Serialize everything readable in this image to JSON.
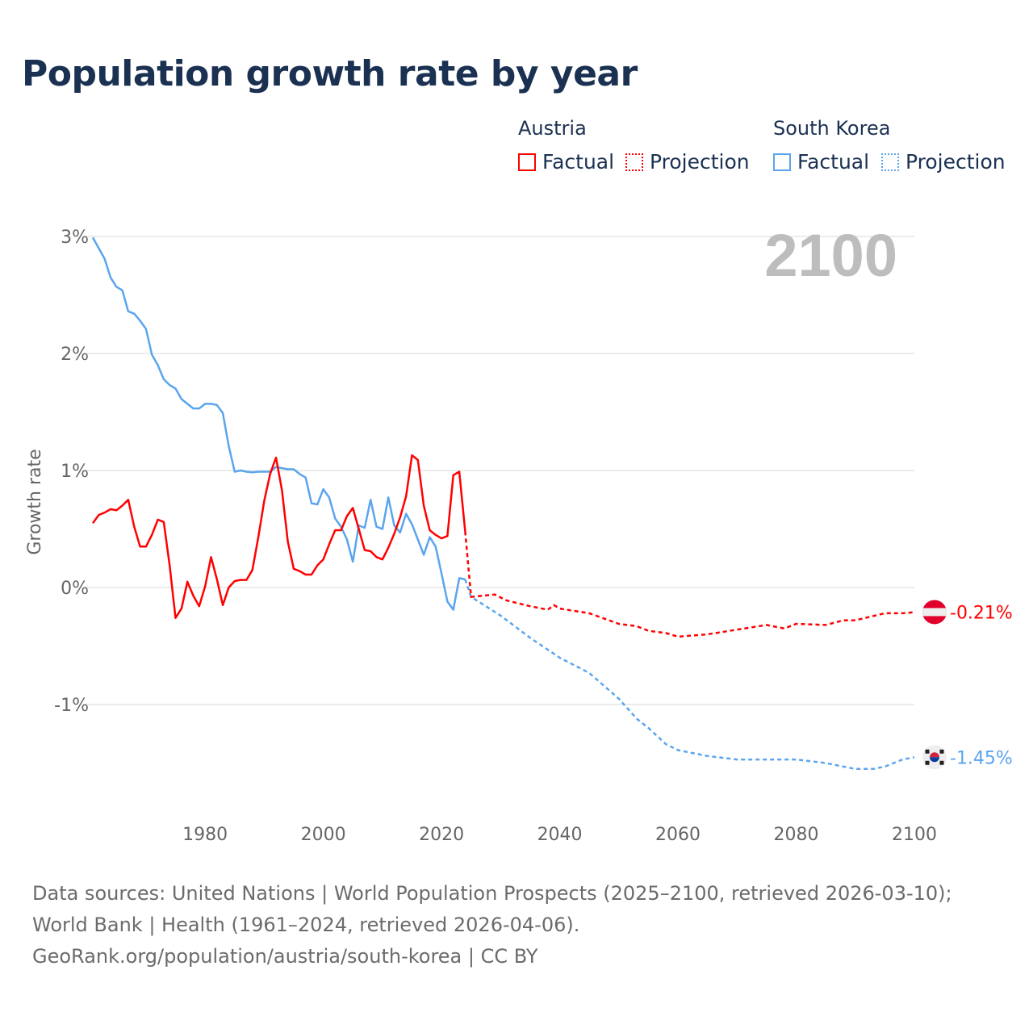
{
  "title": "Population growth rate by year",
  "legend": {
    "groups": [
      {
        "name": "Austria",
        "color": "#ff0000",
        "factual": "Factual",
        "projection": "Projection"
      },
      {
        "name": "South Korea",
        "color": "#5aa5ee",
        "factual": "Factual",
        "projection": "Projection"
      }
    ]
  },
  "year_label": "2100",
  "footer": {
    "sources": "Data sources: United Nations | World Population Prospects (2025–2100, retrieved 2026-03-10); World Bank | Health (1961–2024, retrieved 2026-04-06).",
    "link": "GeoRank.org/population/austria/south-korea | CC BY"
  },
  "chart_data": {
    "type": "line",
    "title": "Population growth rate by year",
    "ylabel": "Growth rate",
    "xlabel": "",
    "xlim": [
      1961,
      2100
    ],
    "ylim": [
      -1.9,
      3.0
    ],
    "x_ticks": [
      1980,
      2000,
      2020,
      2040,
      2060,
      2080,
      2100
    ],
    "y_ticks": [
      {
        "v": 3,
        "label": "3%"
      },
      {
        "v": 2,
        "label": "2%"
      },
      {
        "v": 1,
        "label": "1%"
      },
      {
        "v": 0,
        "label": "0%"
      },
      {
        "v": -1,
        "label": "-1%"
      }
    ],
    "grid": true,
    "legend_position": "top-right",
    "series": [
      {
        "name": "Austria",
        "color": "#ff0000",
        "end_label": "-0.21%",
        "factual": {
          "start_year": 1961,
          "values": [
            0.55,
            0.62,
            0.64,
            0.67,
            0.66,
            0.7,
            0.75,
            0.52,
            0.35,
            0.35,
            0.45,
            0.58,
            0.56,
            0.19,
            -0.26,
            -0.18,
            0.05,
            -0.07,
            -0.16,
            0.01,
            0.26,
            0.07,
            -0.15,
            0.0,
            0.055,
            0.065,
            0.065,
            0.15,
            0.43,
            0.74,
            0.97,
            1.11,
            0.83,
            0.39,
            0.16,
            0.14,
            0.11,
            0.11,
            0.19,
            0.24,
            0.37,
            0.49,
            0.49,
            0.61,
            0.68,
            0.5,
            0.32,
            0.31,
            0.26,
            0.24,
            0.34,
            0.46,
            0.6,
            0.78,
            1.13,
            1.09,
            0.7,
            0.49,
            0.45,
            0.42,
            0.44,
            0.96,
            0.99,
            0.48
          ]
        },
        "projection": {
          "years": [
            2024,
            2025,
            2029,
            2031,
            2035,
            2038,
            2039,
            2040,
            2045,
            2050,
            2053,
            2055,
            2058,
            2060,
            2065,
            2070,
            2075,
            2078,
            2080,
            2085,
            2088,
            2090,
            2095,
            2098,
            2100
          ],
          "values": [
            0.48,
            -0.08,
            -0.06,
            -0.11,
            -0.16,
            -0.19,
            -0.15,
            -0.18,
            -0.22,
            -0.31,
            -0.33,
            -0.37,
            -0.39,
            -0.42,
            -0.4,
            -0.36,
            -0.32,
            -0.35,
            -0.31,
            -0.32,
            -0.28,
            -0.28,
            -0.22,
            -0.22,
            -0.21
          ]
        }
      },
      {
        "name": "South Korea",
        "color": "#5aa5ee",
        "end_label": "-1.45%",
        "factual": {
          "start_year": 1961,
          "values": [
            2.99,
            2.9,
            2.81,
            2.65,
            2.57,
            2.54,
            2.36,
            2.34,
            2.28,
            2.21,
            1.99,
            1.9,
            1.78,
            1.73,
            1.7,
            1.61,
            1.57,
            1.53,
            1.53,
            1.57,
            1.57,
            1.56,
            1.49,
            1.21,
            0.99,
            1.0,
            0.99,
            0.985,
            0.99,
            0.99,
            0.99,
            1.03,
            1.02,
            1.01,
            1.01,
            0.97,
            0.94,
            0.72,
            0.71,
            0.84,
            0.77,
            0.59,
            0.52,
            0.41,
            0.22,
            0.53,
            0.51,
            0.75,
            0.52,
            0.5,
            0.77,
            0.53,
            0.47,
            0.63,
            0.54,
            0.41,
            0.28,
            0.43,
            0.35,
            0.12,
            -0.12,
            -0.19,
            0.08,
            0.07
          ]
        },
        "projection": {
          "years": [
            2024,
            2025,
            2030,
            2035,
            2040,
            2045,
            2050,
            2053,
            2055,
            2058,
            2060,
            2065,
            2070,
            2075,
            2080,
            2085,
            2090,
            2093,
            2095,
            2098,
            2100
          ],
          "values": [
            0.07,
            -0.08,
            -0.24,
            -0.43,
            -0.6,
            -0.73,
            -0.95,
            -1.12,
            -1.2,
            -1.34,
            -1.39,
            -1.44,
            -1.47,
            -1.47,
            -1.47,
            -1.5,
            -1.55,
            -1.55,
            -1.53,
            -1.47,
            -1.45
          ]
        }
      }
    ]
  }
}
